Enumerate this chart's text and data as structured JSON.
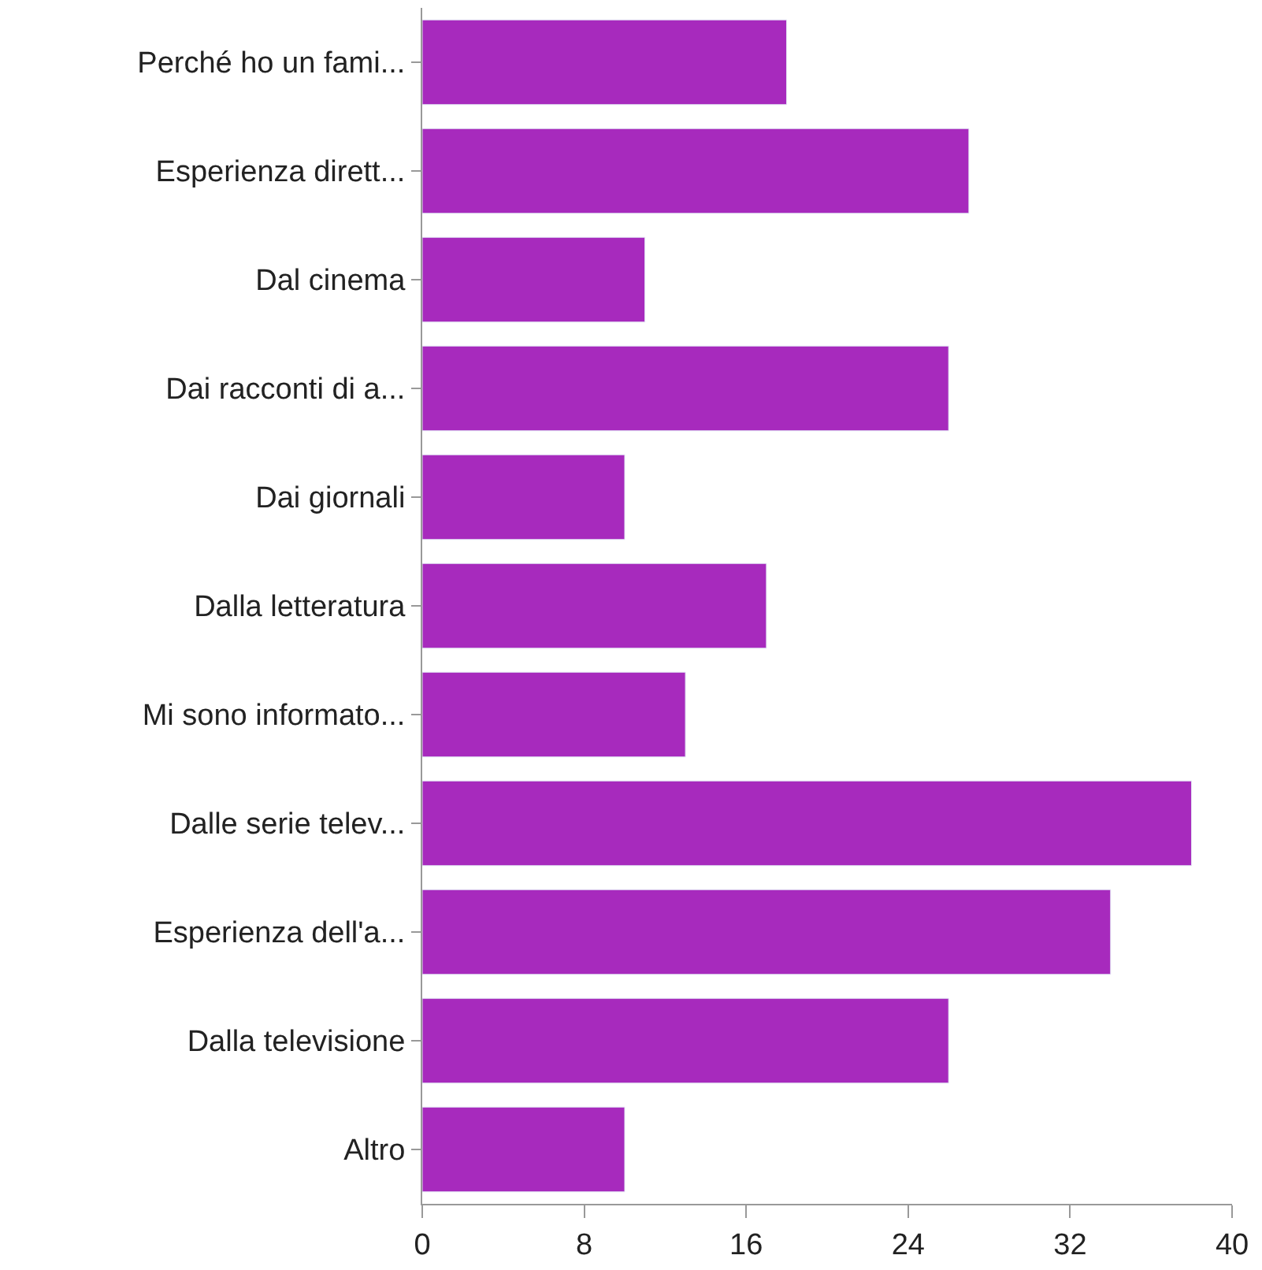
{
  "chart_data": {
    "type": "bar",
    "orientation": "horizontal",
    "categories": [
      "Perché ho un fami...",
      "Esperienza dirett...",
      "Dal cinema",
      "Dai racconti di a...",
      "Dai giornali",
      "Dalla letteratura",
      "Mi sono informato...",
      "Dalle serie telev...",
      "Esperienza dell'a...",
      "Dalla televisione",
      "Altro"
    ],
    "values": [
      18,
      27,
      11,
      26,
      10,
      17,
      13,
      38,
      34,
      26,
      10
    ],
    "color": "#a72abd",
    "xlim": [
      0,
      40
    ],
    "xticks": [
      0,
      8,
      16,
      24,
      32,
      40
    ],
    "legend": false
  }
}
